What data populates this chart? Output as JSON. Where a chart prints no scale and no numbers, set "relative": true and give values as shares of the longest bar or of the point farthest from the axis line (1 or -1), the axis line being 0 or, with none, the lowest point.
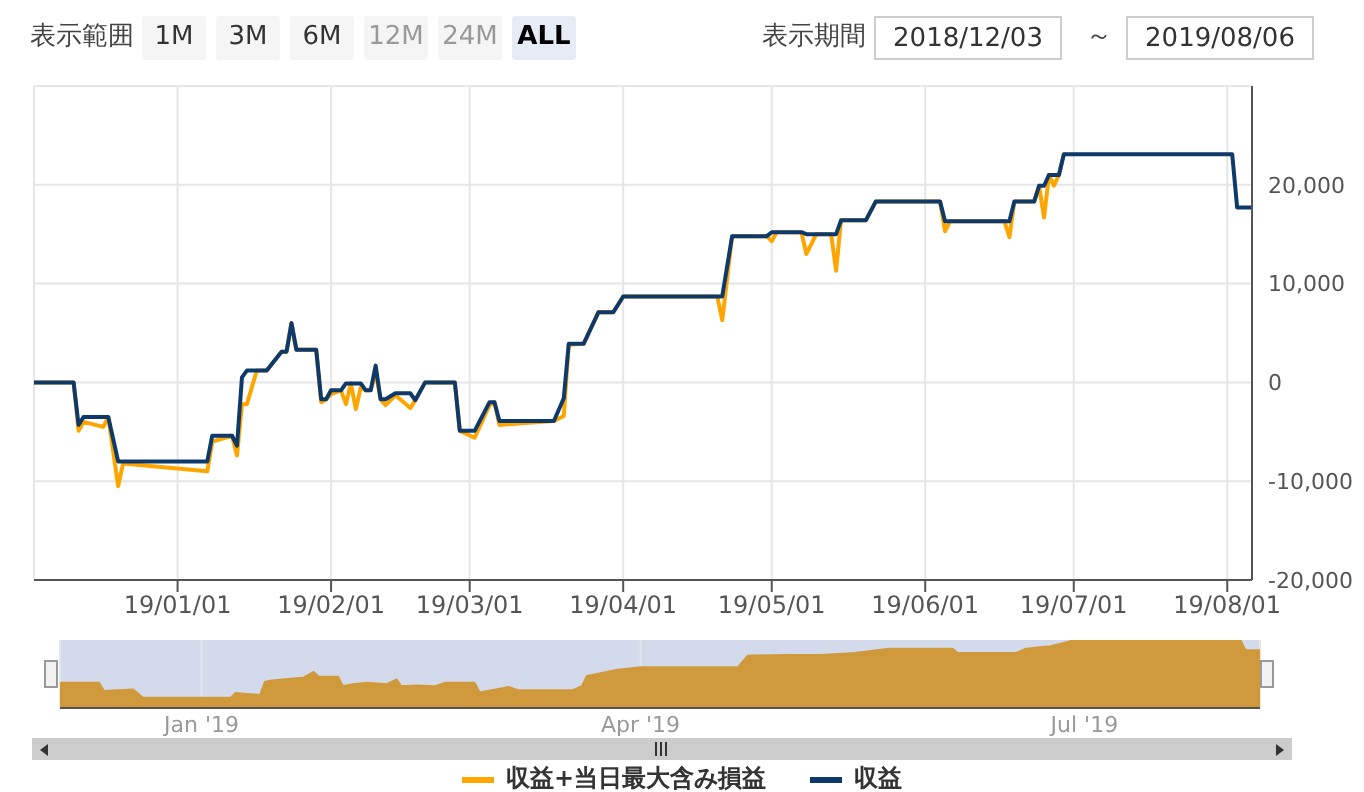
{
  "chart_data": [
    {
      "type": "line",
      "annotations": [
        "表示範囲",
        "1M",
        "3M",
        "6M",
        "12M",
        "24M",
        "ALL",
        "表示期間",
        "2018/12/03",
        "～",
        "2019/08/06"
      ],
      "x": [
        "2018-12-03",
        "2018-12-11",
        "2018-12-12",
        "2018-12-13",
        "2018-12-17",
        "2018-12-18",
        "2018-12-20",
        "2018-12-21",
        "2019-01-07",
        "2019-01-08",
        "2019-01-12",
        "2019-01-13",
        "2019-01-14",
        "2019-01-15",
        "2019-01-17",
        "2019-01-19",
        "2019-01-22",
        "2019-01-23",
        "2019-01-24",
        "2019-01-25",
        "2019-01-29",
        "2019-01-30",
        "2019-01-31",
        "2019-02-01",
        "2019-02-03",
        "2019-02-04",
        "2019-02-05",
        "2019-02-06",
        "2019-02-07",
        "2019-02-08",
        "2019-02-09",
        "2019-02-10",
        "2019-02-11",
        "2019-02-12",
        "2019-02-14",
        "2019-02-17",
        "2019-02-18",
        "2019-02-20",
        "2019-02-26",
        "2019-02-27",
        "2019-03-02",
        "2019-03-05",
        "2019-03-06",
        "2019-03-07",
        "2019-03-18",
        "2019-03-20",
        "2019-03-21",
        "2019-03-24",
        "2019-03-27",
        "2019-03-30",
        "2019-04-01",
        "2019-04-20",
        "2019-04-21",
        "2019-04-23",
        "2019-04-30",
        "2019-05-01",
        "2019-05-02",
        "2019-05-07",
        "2019-05-08",
        "2019-05-10",
        "2019-05-13",
        "2019-05-14",
        "2019-05-15",
        "2019-05-20",
        "2019-05-22",
        "2019-06-04",
        "2019-06-05",
        "2019-06-06",
        "2019-06-17",
        "2019-06-18",
        "2019-06-19",
        "2019-06-23",
        "2019-06-24",
        "2019-06-25",
        "2019-06-26",
        "2019-06-27",
        "2019-06-28",
        "2019-06-29",
        "2019-08-02",
        "2019-08-03",
        "2019-08-06"
      ],
      "series": [
        {
          "name": "収益+当日最大含み損益",
          "color": "#ffa500",
          "values": [
            0,
            0,
            -4900,
            -4000,
            -4500,
            -3500,
            -10500,
            -8200,
            -9000,
            -6000,
            -5400,
            -7400,
            -2200,
            -2200,
            1200,
            1200,
            3100,
            3100,
            6000,
            3300,
            3300,
            -2000,
            -1700,
            -1200,
            -800,
            -2200,
            -100,
            -2700,
            -500,
            -800,
            -800,
            1000,
            -1700,
            -2300,
            -1300,
            -2600,
            -1800,
            0,
            0,
            -4900,
            -5600,
            -2300,
            -2000,
            -4300,
            -3900,
            -3400,
            3800,
            3900,
            7100,
            7100,
            8700,
            8700,
            6300,
            14800,
            14800,
            14300,
            15200,
            15200,
            13000,
            15000,
            15000,
            11300,
            16400,
            16400,
            18300,
            18300,
            15300,
            16300,
            16300,
            14700,
            18300,
            18300,
            19900,
            16700,
            21000,
            19900,
            21000,
            23100,
            null,
            null,
            null
          ]
        },
        {
          "name": "収益",
          "color": "#0d3a6b",
          "values": [
            0,
            0,
            -4300,
            -3500,
            -3500,
            -3500,
            -8000,
            -8000,
            -8000,
            -5400,
            -5400,
            -6400,
            500,
            1200,
            1200,
            1200,
            3100,
            3100,
            6000,
            3300,
            3300,
            -1700,
            -1700,
            -800,
            -800,
            -100,
            -100,
            -100,
            -100,
            -800,
            -800,
            1700,
            -1700,
            -1700,
            -1100,
            -1100,
            -1800,
            0,
            0,
            -4900,
            -4900,
            -2000,
            -2000,
            -3900,
            -3900,
            -1600,
            3900,
            3900,
            7100,
            7100,
            8700,
            8700,
            8700,
            14800,
            14800,
            15200,
            15200,
            15200,
            15000,
            15000,
            15000,
            15000,
            16400,
            16400,
            18300,
            18300,
            16300,
            16300,
            16300,
            16300,
            18300,
            18300,
            19900,
            19900,
            21000,
            21000,
            21000,
            23100,
            23100,
            17700,
            17700
          ]
        }
      ],
      "xlim": [
        "2018-12-03",
        "2019-08-06"
      ],
      "xticks": [
        {
          "value": "2019-01-01",
          "label": "19/01/01"
        },
        {
          "value": "2019-02-01",
          "label": "19/02/01"
        },
        {
          "value": "2019-03-01",
          "label": "19/03/01"
        },
        {
          "value": "2019-04-01",
          "label": "19/04/01"
        },
        {
          "value": "2019-05-01",
          "label": "19/05/01"
        },
        {
          "value": "2019-06-01",
          "label": "19/06/01"
        },
        {
          "value": "2019-07-01",
          "label": "19/07/01"
        },
        {
          "value": "2019-08-01",
          "label": "19/08/01"
        }
      ],
      "ylim": [
        -20000,
        30000
      ],
      "yticks": [
        {
          "value": -20000,
          "label": "-20,000"
        },
        {
          "value": -10000,
          "label": "-10,000"
        },
        0,
        {
          "value": 10000,
          "label": "10,000"
        },
        {
          "value": 20000,
          "label": "20,000"
        }
      ],
      "grid": true,
      "legend": "bottom"
    },
    {
      "type": "area",
      "relative": true,
      "tick_labels": "x",
      "x": [
        "2018-12-03",
        "2018-12-11",
        "2018-12-12",
        "2018-12-18",
        "2018-12-20",
        "2019-01-07",
        "2019-01-08",
        "2019-01-13",
        "2019-01-14",
        "2019-01-15",
        "2019-01-22",
        "2019-01-24",
        "2019-01-25",
        "2019-01-29",
        "2019-01-30",
        "2019-02-01",
        "2019-02-04",
        "2019-02-08",
        "2019-02-10",
        "2019-02-11",
        "2019-02-14",
        "2019-02-18",
        "2019-02-20",
        "2019-02-26",
        "2019-02-27",
        "2019-03-05",
        "2019-03-07",
        "2019-03-18",
        "2019-03-20",
        "2019-03-21",
        "2019-03-27",
        "2019-04-01",
        "2019-04-21",
        "2019-04-23",
        "2019-05-01",
        "2019-05-08",
        "2019-05-15",
        "2019-05-22",
        "2019-06-04",
        "2019-06-05",
        "2019-06-17",
        "2019-06-19",
        "2019-06-24",
        "2019-06-26",
        "2019-06-29",
        "2019-08-02",
        "2019-08-03",
        "2019-08-06"
      ],
      "series": [
        {
          "color": "#d09a3c",
          "values": [
            0.37,
            0.37,
            0.25,
            0.27,
            0.15,
            0.15,
            0.22,
            0.19,
            0.38,
            0.4,
            0.45,
            0.53,
            0.46,
            0.46,
            0.32,
            0.35,
            0.37,
            0.35,
            0.42,
            0.32,
            0.33,
            0.32,
            0.37,
            0.37,
            0.23,
            0.31,
            0.26,
            0.26,
            0.32,
            0.47,
            0.56,
            0.6,
            0.6,
            0.77,
            0.78,
            0.78,
            0.81,
            0.87,
            0.87,
            0.81,
            0.81,
            0.87,
            0.91,
            0.94,
            1.0,
            1.0,
            0.85,
            0.85
          ]
        }
      ],
      "xlim": [
        "2018-12-03",
        "2019-08-06"
      ],
      "xticks": [
        {
          "value": "2019-01-01",
          "label": "Jan '19"
        },
        {
          "value": "2019-04-01",
          "label": "Apr '19"
        },
        {
          "value": "2019-07-01",
          "label": "Jul '19"
        }
      ],
      "grid": "x"
    }
  ]
}
